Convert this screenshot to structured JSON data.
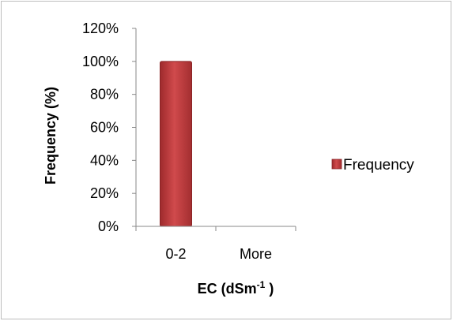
{
  "chart_data": {
    "type": "bar",
    "categories": [
      "0-2",
      "More"
    ],
    "series": [
      {
        "name": "Frequency",
        "values": [
          100,
          0
        ]
      }
    ],
    "title": "",
    "xlabel": "EC (dSm",
    "xlabel_sup": "-1",
    "xlabel_suffix": " )",
    "ylabel": "Frequency (%)",
    "ylim": [
      0,
      120
    ],
    "yticks": [
      0,
      20,
      40,
      60,
      80,
      100,
      120
    ],
    "ytick_suffix": "%",
    "grid": false,
    "legend_position": "right",
    "bar_color": "#c0393b"
  }
}
